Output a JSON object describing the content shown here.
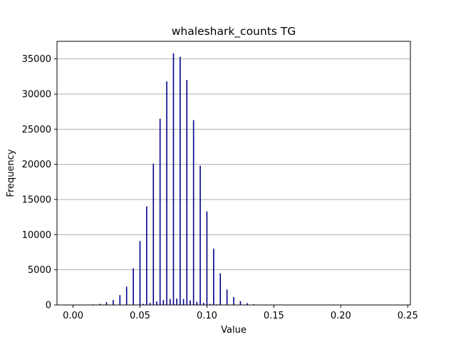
{
  "chart_data": {
    "type": "bar",
    "title": "whaleshark_counts TG",
    "xlabel": "Value",
    "ylabel": "Frequency",
    "xlim": [
      -0.012,
      0.252
    ],
    "ylim": [
      0,
      37500
    ],
    "xticks": [
      0.0,
      0.05,
      0.1,
      0.15,
      0.2,
      0.25
    ],
    "xtick_labels": [
      "0.00",
      "0.05",
      "0.10",
      "0.15",
      "0.20",
      "0.25"
    ],
    "yticks": [
      0,
      5000,
      10000,
      15000,
      20000,
      25000,
      30000,
      35000
    ],
    "ytick_labels": [
      "0",
      "5000",
      "10000",
      "15000",
      "20000",
      "25000",
      "30000",
      "35000"
    ],
    "grid": "y",
    "bar_color": "#00008b",
    "series": [
      {
        "x": [
          0.015,
          0.02,
          0.025,
          0.03,
          0.035,
          0.04,
          0.045,
          0.05,
          0.055,
          0.06,
          0.065,
          0.07,
          0.075,
          0.08,
          0.085,
          0.09,
          0.095,
          0.1,
          0.105,
          0.11,
          0.115,
          0.12,
          0.125,
          0.13,
          0.135,
          0.14
        ],
        "values": [
          80,
          150,
          400,
          700,
          1400,
          2600,
          5200,
          9100,
          14000,
          20100,
          26500,
          31800,
          35800,
          35300,
          32000,
          26300,
          19800,
          13300,
          8000,
          4500,
          2200,
          1100,
          550,
          250,
          100,
          40
        ]
      },
      {
        "x": [
          0.0525,
          0.0575,
          0.0625,
          0.0675,
          0.0725,
          0.0775,
          0.0825,
          0.0875,
          0.0925,
          0.0975,
          0.1025,
          0.1075
        ],
        "values": [
          150,
          300,
          500,
          700,
          850,
          900,
          850,
          650,
          450,
          300,
          150,
          80
        ]
      }
    ]
  }
}
